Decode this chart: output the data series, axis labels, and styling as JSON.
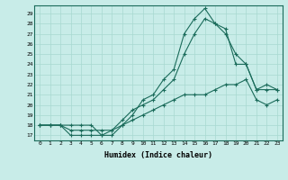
{
  "xlabel": "Humidex (Indice chaleur)",
  "bg_color": "#c8ece8",
  "line_color": "#1a6b5a",
  "grid_color": "#a8d8d0",
  "xlim": [
    -0.5,
    23.5
  ],
  "ylim": [
    16.5,
    29.8
  ],
  "yticks": [
    17,
    18,
    19,
    20,
    21,
    22,
    23,
    24,
    25,
    26,
    27,
    28,
    29
  ],
  "xticks": [
    0,
    1,
    2,
    3,
    4,
    5,
    6,
    7,
    8,
    9,
    10,
    11,
    12,
    13,
    14,
    15,
    16,
    17,
    18,
    19,
    20,
    21,
    22,
    23
  ],
  "line1_x": [
    0,
    1,
    2,
    3,
    4,
    5,
    6,
    7,
    8,
    9,
    10,
    11,
    12,
    13,
    14,
    15,
    16,
    17,
    18,
    19,
    20,
    21,
    22,
    23
  ],
  "line1_y": [
    18,
    18,
    18,
    18,
    18,
    18,
    17,
    17.5,
    18,
    18.5,
    19,
    19.5,
    20,
    20.5,
    21,
    21,
    21,
    21.5,
    22,
    22,
    22.5,
    20.5,
    20,
    20.5
  ],
  "line2_x": [
    0,
    1,
    2,
    3,
    4,
    5,
    6,
    7,
    8,
    9,
    10,
    11,
    12,
    13,
    14,
    15,
    16,
    17,
    18,
    19,
    20,
    21,
    22,
    23
  ],
  "line2_y": [
    18,
    18,
    18,
    17.5,
    17.5,
    17.5,
    17.5,
    17.5,
    18.5,
    19.5,
    20,
    20.5,
    21.5,
    22.5,
    25,
    27,
    28.5,
    28,
    27.5,
    24,
    24,
    21.5,
    21.5,
    21.5
  ],
  "line3_x": [
    0,
    1,
    2,
    3,
    4,
    5,
    6,
    7,
    8,
    9,
    10,
    11,
    12,
    13,
    14,
    15,
    16,
    17,
    18,
    19,
    20,
    21,
    22,
    23
  ],
  "line3_y": [
    18,
    18,
    18,
    17,
    17,
    17,
    17,
    17,
    18,
    19,
    20.5,
    21,
    22.5,
    23.5,
    27,
    28.5,
    29.5,
    28,
    27,
    25,
    24,
    21.5,
    22,
    21.5
  ]
}
